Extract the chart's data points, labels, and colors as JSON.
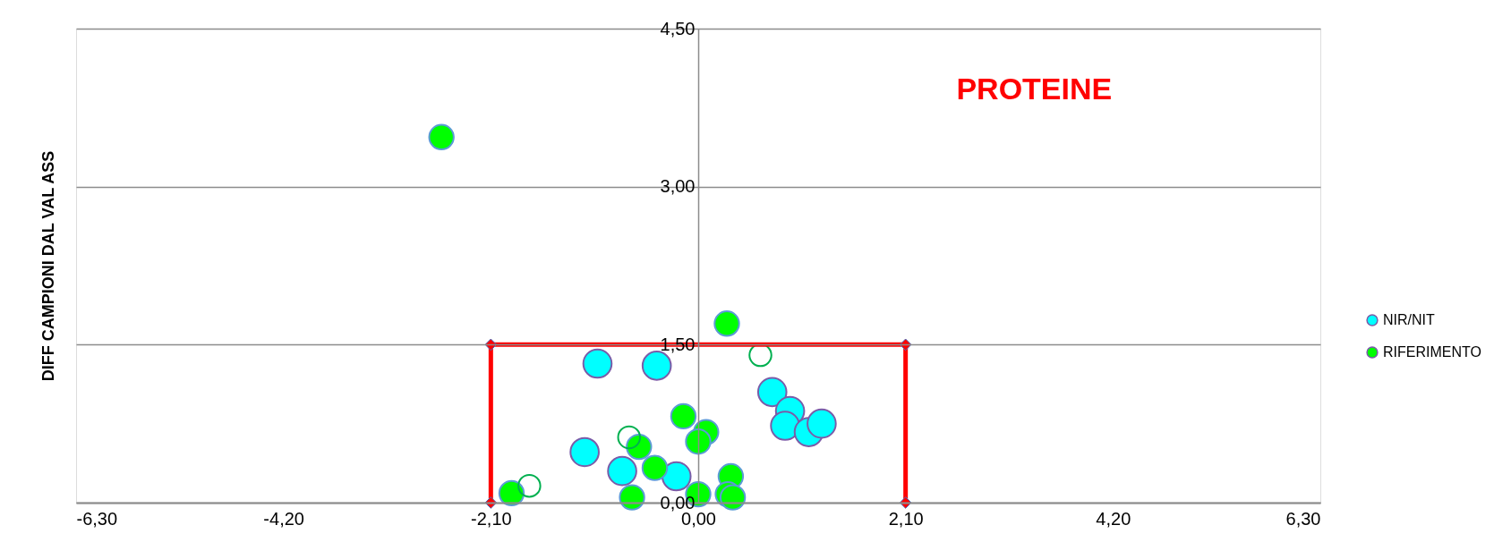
{
  "chart_data": {
    "type": "scatter",
    "title": "PROTEINE",
    "ylabel": "DIFF CAMPIONI DAL VAL ASS",
    "xlim": [
      -6.3,
      6.3
    ],
    "ylim": [
      0,
      4.5
    ],
    "xticks": [
      {
        "value": -6.3,
        "label": "-6,30"
      },
      {
        "value": -4.2,
        "label": "-4,20"
      },
      {
        "value": -2.1,
        "label": "-2,10"
      },
      {
        "value": 0,
        "label": "0,00"
      },
      {
        "value": 2.1,
        "label": "2,10"
      },
      {
        "value": 4.2,
        "label": "4,20"
      },
      {
        "value": 6.3,
        "label": "6,30"
      }
    ],
    "yticks": [
      {
        "value": 0,
        "label": "0,00"
      },
      {
        "value": 1.5,
        "label": "1,50"
      },
      {
        "value": 3,
        "label": "3,00"
      },
      {
        "value": 4.5,
        "label": "4,50"
      }
    ],
    "grid": "y",
    "legend": "right",
    "marker": "circle",
    "series": [
      {
        "name": "NIR/NIT",
        "color": "#00ffff",
        "x": [
          -1.02,
          -0.42,
          -1.15,
          -0.77,
          -0.22,
          0.75,
          0.93,
          0.88,
          1.12,
          1.25
        ],
        "values": [
          1.32,
          1.3,
          0.48,
          0.3,
          0.25,
          1.05,
          0.87,
          0.73,
          0.67,
          0.75
        ]
      },
      {
        "name": "RIFERIMENTO",
        "color": "#00ff00",
        "x": [
          -2.6,
          0.29,
          -1.89,
          -0.15,
          0.08,
          0.0,
          -0.6,
          -0.44,
          -0.67,
          0.0,
          0.33,
          0.3,
          0.35
        ],
        "values": [
          3.47,
          1.7,
          0.09,
          0.82,
          0.67,
          0.58,
          0.53,
          0.33,
          0.05,
          0.08,
          0.25,
          0.08,
          0.05
        ]
      },
      {
        "color": "#00b050",
        "x": [
          -0.7,
          -1.71,
          0.63
        ],
        "values": [
          0.62,
          0.16,
          1.4
        ]
      },
      {
        "type": "line",
        "color": "#ff0000",
        "marker": "diamond",
        "x": [
          -2.1,
          -2.1,
          2.1,
          2.1
        ],
        "values": [
          0,
          1.5,
          1.5,
          0
        ]
      }
    ]
  }
}
